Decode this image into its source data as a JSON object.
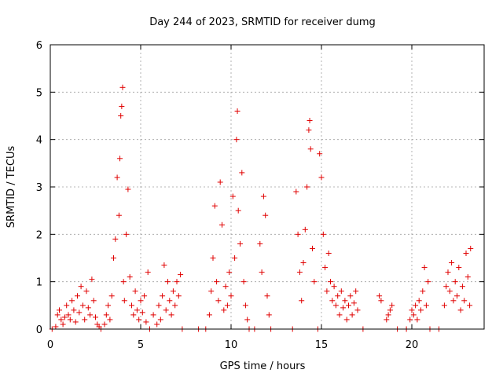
{
  "chart_data": {
    "type": "scatter",
    "title": "Day 244 of 2023, SRMTID for receiver dumg",
    "xlabel": "GPS time / hours",
    "ylabel": "SRMTID / TECUs",
    "xlim": [
      0,
      24
    ],
    "ylim": [
      0,
      6
    ],
    "xticks": [
      0,
      5,
      10,
      15,
      20
    ],
    "xtick_labels": [
      "0",
      "5",
      "10",
      "15",
      "20"
    ],
    "yticks": [
      0,
      1,
      2,
      3,
      4,
      5,
      6
    ],
    "ytick_labels": [
      "0",
      "1",
      "2",
      "3",
      "4",
      "5",
      "6"
    ],
    "grid": true,
    "marker": "plus",
    "color": "#e00000",
    "series": [
      {
        "name": "SRMTID",
        "points": [
          [
            0.1,
            0.0
          ],
          [
            0.3,
            0.05
          ],
          [
            0.4,
            0.3
          ],
          [
            0.5,
            0.4
          ],
          [
            0.6,
            0.2
          ],
          [
            0.7,
            0.1
          ],
          [
            0.8,
            0.25
          ],
          [
            0.9,
            0.5
          ],
          [
            1.0,
            0.3
          ],
          [
            1.1,
            0.2
          ],
          [
            1.2,
            0.6
          ],
          [
            1.3,
            0.4
          ],
          [
            1.4,
            0.15
          ],
          [
            1.5,
            0.7
          ],
          [
            1.6,
            0.35
          ],
          [
            1.7,
            0.9
          ],
          [
            1.8,
            0.5
          ],
          [
            1.9,
            0.2
          ],
          [
            2.0,
            0.8
          ],
          [
            2.1,
            0.45
          ],
          [
            2.2,
            0.3
          ],
          [
            2.3,
            1.05
          ],
          [
            2.4,
            0.6
          ],
          [
            2.5,
            0.25
          ],
          [
            2.6,
            0.1
          ],
          [
            2.7,
            0.05
          ],
          [
            2.8,
            0.0
          ],
          [
            3.0,
            0.1
          ],
          [
            3.1,
            0.3
          ],
          [
            3.2,
            0.5
          ],
          [
            3.3,
            0.2
          ],
          [
            3.4,
            0.7
          ],
          [
            3.5,
            1.5
          ],
          [
            3.6,
            1.9
          ],
          [
            3.7,
            3.2
          ],
          [
            3.8,
            2.4
          ],
          [
            3.85,
            3.6
          ],
          [
            3.9,
            4.5
          ],
          [
            3.95,
            4.7
          ],
          [
            4.0,
            5.1
          ],
          [
            4.05,
            1.0
          ],
          [
            4.1,
            0.6
          ],
          [
            4.2,
            2.0
          ],
          [
            4.3,
            2.95
          ],
          [
            4.4,
            1.1
          ],
          [
            4.5,
            0.5
          ],
          [
            4.6,
            0.3
          ],
          [
            4.7,
            0.8
          ],
          [
            4.8,
            0.4
          ],
          [
            4.9,
            0.2
          ],
          [
            5.0,
            0.6
          ],
          [
            5.1,
            0.35
          ],
          [
            5.2,
            0.7
          ],
          [
            5.3,
            0.15
          ],
          [
            5.4,
            1.2
          ],
          [
            5.5,
            0.0
          ],
          [
            5.7,
            0.3
          ],
          [
            5.9,
            0.1
          ],
          [
            6.0,
            0.5
          ],
          [
            6.1,
            0.2
          ],
          [
            6.2,
            0.7
          ],
          [
            6.3,
            1.35
          ],
          [
            6.4,
            0.4
          ],
          [
            6.5,
            1.0
          ],
          [
            6.6,
            0.6
          ],
          [
            6.7,
            0.3
          ],
          [
            6.8,
            0.8
          ],
          [
            6.9,
            0.5
          ],
          [
            7.0,
            1.0
          ],
          [
            7.1,
            0.7
          ],
          [
            7.2,
            1.15
          ],
          [
            7.3,
            0.0
          ],
          [
            8.2,
            0.0
          ],
          [
            8.6,
            0.0
          ],
          [
            8.8,
            0.3
          ],
          [
            8.9,
            0.8
          ],
          [
            9.0,
            1.5
          ],
          [
            9.1,
            2.6
          ],
          [
            9.2,
            1.0
          ],
          [
            9.3,
            0.6
          ],
          [
            9.4,
            3.1
          ],
          [
            9.5,
            2.2
          ],
          [
            9.6,
            0.4
          ],
          [
            9.7,
            0.9
          ],
          [
            9.8,
            0.5
          ],
          [
            9.9,
            1.2
          ],
          [
            10.0,
            0.7
          ],
          [
            10.1,
            2.8
          ],
          [
            10.2,
            1.5
          ],
          [
            10.3,
            4.0
          ],
          [
            10.35,
            4.6
          ],
          [
            10.4,
            2.5
          ],
          [
            10.5,
            1.8
          ],
          [
            10.6,
            3.3
          ],
          [
            10.7,
            1.0
          ],
          [
            10.8,
            0.5
          ],
          [
            10.9,
            0.2
          ],
          [
            11.0,
            0.0
          ],
          [
            11.3,
            0.0
          ],
          [
            11.6,
            1.8
          ],
          [
            11.7,
            1.2
          ],
          [
            11.8,
            2.8
          ],
          [
            11.9,
            2.4
          ],
          [
            12.0,
            0.7
          ],
          [
            12.1,
            0.3
          ],
          [
            12.2,
            0.0
          ],
          [
            13.4,
            0.0
          ],
          [
            13.6,
            2.9
          ],
          [
            13.7,
            2.0
          ],
          [
            13.8,
            1.2
          ],
          [
            13.9,
            0.6
          ],
          [
            14.0,
            1.4
          ],
          [
            14.1,
            2.1
          ],
          [
            14.2,
            3.0
          ],
          [
            14.3,
            4.2
          ],
          [
            14.35,
            4.4
          ],
          [
            14.4,
            3.8
          ],
          [
            14.5,
            1.7
          ],
          [
            14.6,
            1.0
          ],
          [
            14.8,
            0.0
          ],
          [
            14.9,
            3.7
          ],
          [
            15.0,
            3.2
          ],
          [
            15.1,
            2.0
          ],
          [
            15.2,
            1.3
          ],
          [
            15.3,
            0.8
          ],
          [
            15.4,
            1.6
          ],
          [
            15.5,
            1.0
          ],
          [
            15.6,
            0.6
          ],
          [
            15.7,
            0.9
          ],
          [
            15.8,
            0.5
          ],
          [
            15.9,
            0.7
          ],
          [
            16.0,
            0.3
          ],
          [
            16.1,
            0.8
          ],
          [
            16.2,
            0.45
          ],
          [
            16.3,
            0.6
          ],
          [
            16.4,
            0.2
          ],
          [
            16.5,
            0.5
          ],
          [
            16.6,
            0.7
          ],
          [
            16.7,
            0.3
          ],
          [
            16.8,
            0.55
          ],
          [
            16.9,
            0.8
          ],
          [
            17.0,
            0.4
          ],
          [
            17.3,
            0.0
          ],
          [
            18.2,
            0.7
          ],
          [
            18.3,
            0.6
          ],
          [
            18.6,
            0.2
          ],
          [
            18.7,
            0.3
          ],
          [
            18.8,
            0.4
          ],
          [
            18.9,
            0.5
          ],
          [
            19.2,
            0.0
          ],
          [
            19.7,
            0.0
          ],
          [
            19.9,
            0.2
          ],
          [
            20.0,
            0.4
          ],
          [
            20.1,
            0.3
          ],
          [
            20.2,
            0.5
          ],
          [
            20.3,
            0.2
          ],
          [
            20.4,
            0.6
          ],
          [
            20.5,
            0.4
          ],
          [
            20.6,
            0.8
          ],
          [
            20.7,
            1.3
          ],
          [
            20.8,
            0.5
          ],
          [
            20.9,
            1.0
          ],
          [
            21.0,
            0.0
          ],
          [
            21.5,
            0.0
          ],
          [
            21.8,
            0.5
          ],
          [
            21.9,
            0.9
          ],
          [
            22.0,
            1.2
          ],
          [
            22.1,
            0.8
          ],
          [
            22.2,
            1.4
          ],
          [
            22.3,
            0.6
          ],
          [
            22.4,
            1.0
          ],
          [
            22.5,
            0.7
          ],
          [
            22.6,
            1.3
          ],
          [
            22.7,
            0.4
          ],
          [
            22.8,
            0.9
          ],
          [
            22.9,
            0.6
          ],
          [
            23.0,
            1.6
          ],
          [
            23.1,
            1.1
          ],
          [
            23.2,
            0.5
          ],
          [
            23.25,
            1.7
          ]
        ]
      }
    ]
  }
}
